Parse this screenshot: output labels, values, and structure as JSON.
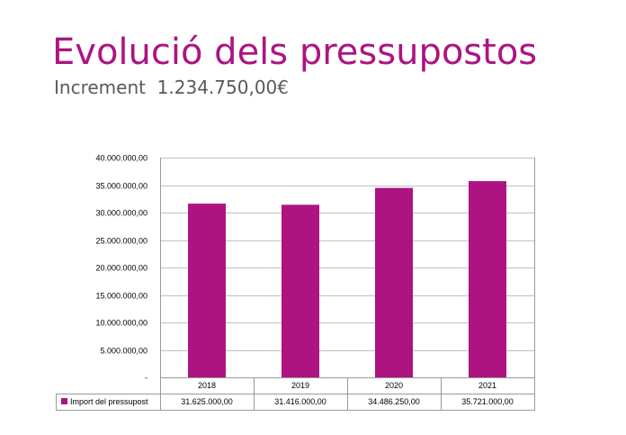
{
  "header": {
    "title": "Evolució dels pressupostos",
    "subtitle": "Increment  1.234.750,00€"
  },
  "chart_data": {
    "type": "bar",
    "categories": [
      "2018",
      "2019",
      "2020",
      "2021"
    ],
    "series": [
      {
        "name": "Import del pressupost",
        "values": [
          31625000,
          31416000,
          34486250,
          35721000
        ],
        "labels": [
          "31.625.000,00",
          "31.416.000,00",
          "34.486.250,00",
          "35.721.000,00"
        ],
        "color": "#ad1482"
      }
    ],
    "ylim": [
      0,
      40000000
    ],
    "yticks": [
      0,
      5000000,
      10000000,
      15000000,
      20000000,
      25000000,
      30000000,
      35000000,
      40000000
    ],
    "ytick_labels": [
      "-",
      "5.000.000,00",
      "10.000.000,00",
      "15.000.000,00",
      "20.000.000,00",
      "25.000.000,00",
      "30.000.000,00",
      "35.000.000,00",
      "40.000.000,00"
    ],
    "grid": true,
    "legend": "data-table",
    "title": "",
    "xlabel": "",
    "ylabel": ""
  }
}
